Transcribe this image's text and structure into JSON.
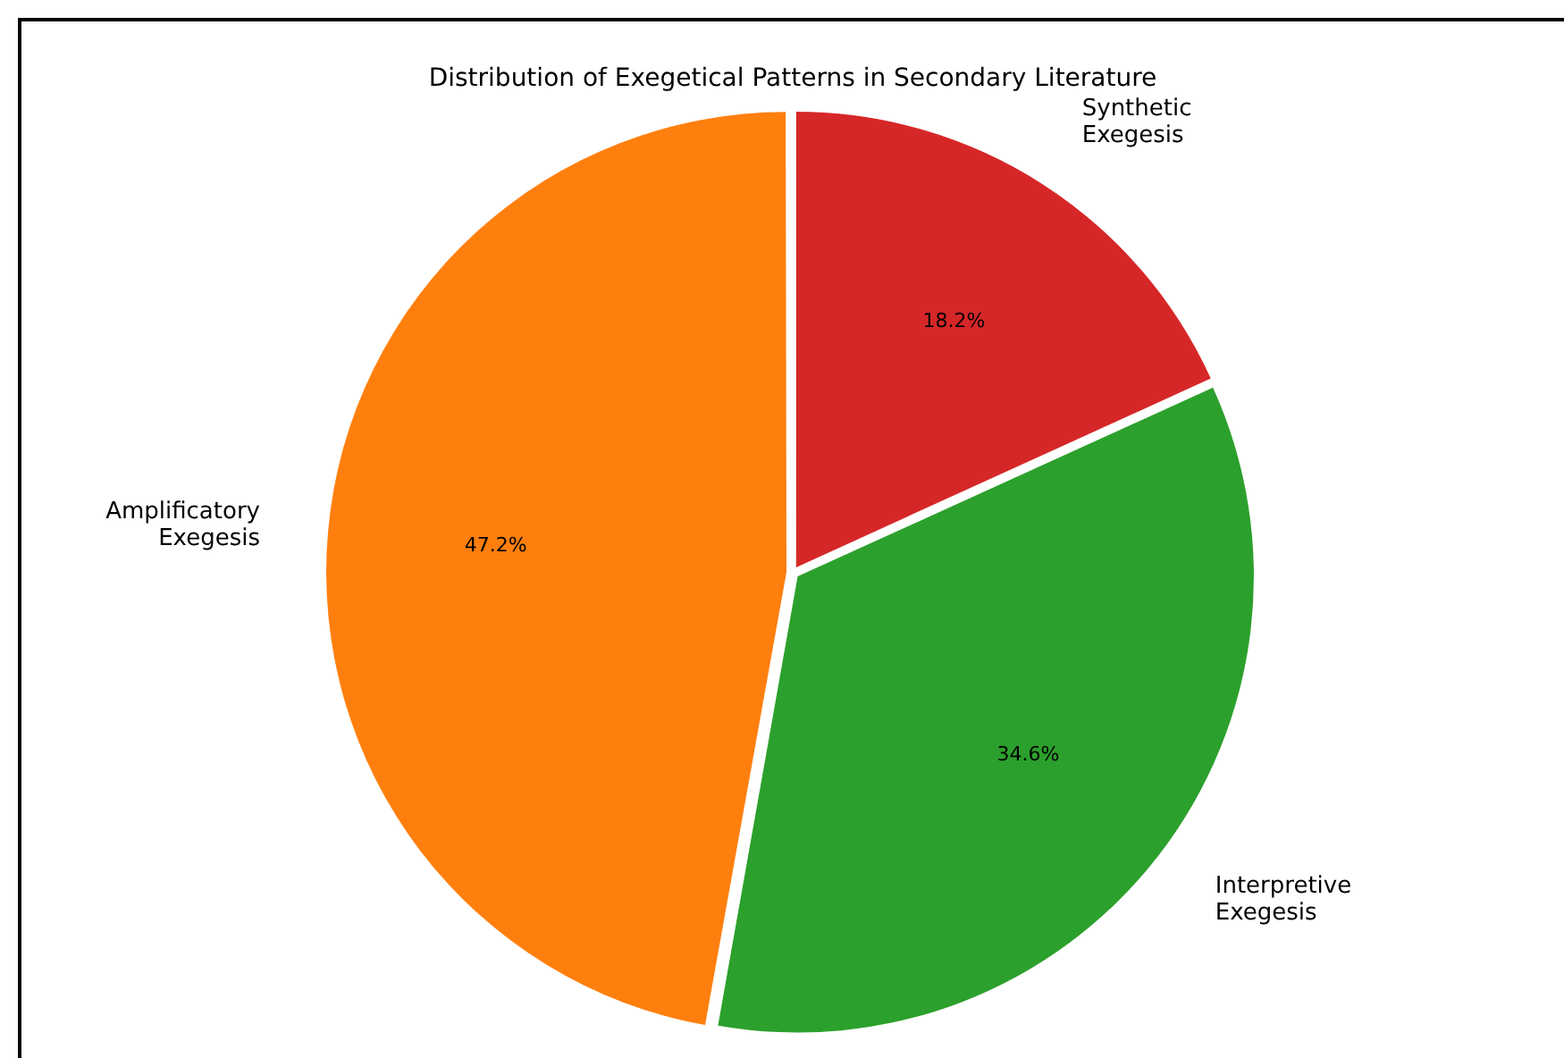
{
  "chart_data": {
    "type": "pie",
    "title": "Distribution of Exegetical Patterns in Secondary Literature",
    "categories": [
      "Synthetic Exegesis",
      "Interpretive Exegesis",
      "Amplificatory Exegesis"
    ],
    "values": [
      18.2,
      34.6,
      47.2
    ],
    "colors": [
      "#d62728",
      "#2ca02c",
      "#ff7f0e"
    ],
    "value_labels": [
      "18.2%",
      "34.6%",
      "47.2%"
    ],
    "legend": false
  }
}
